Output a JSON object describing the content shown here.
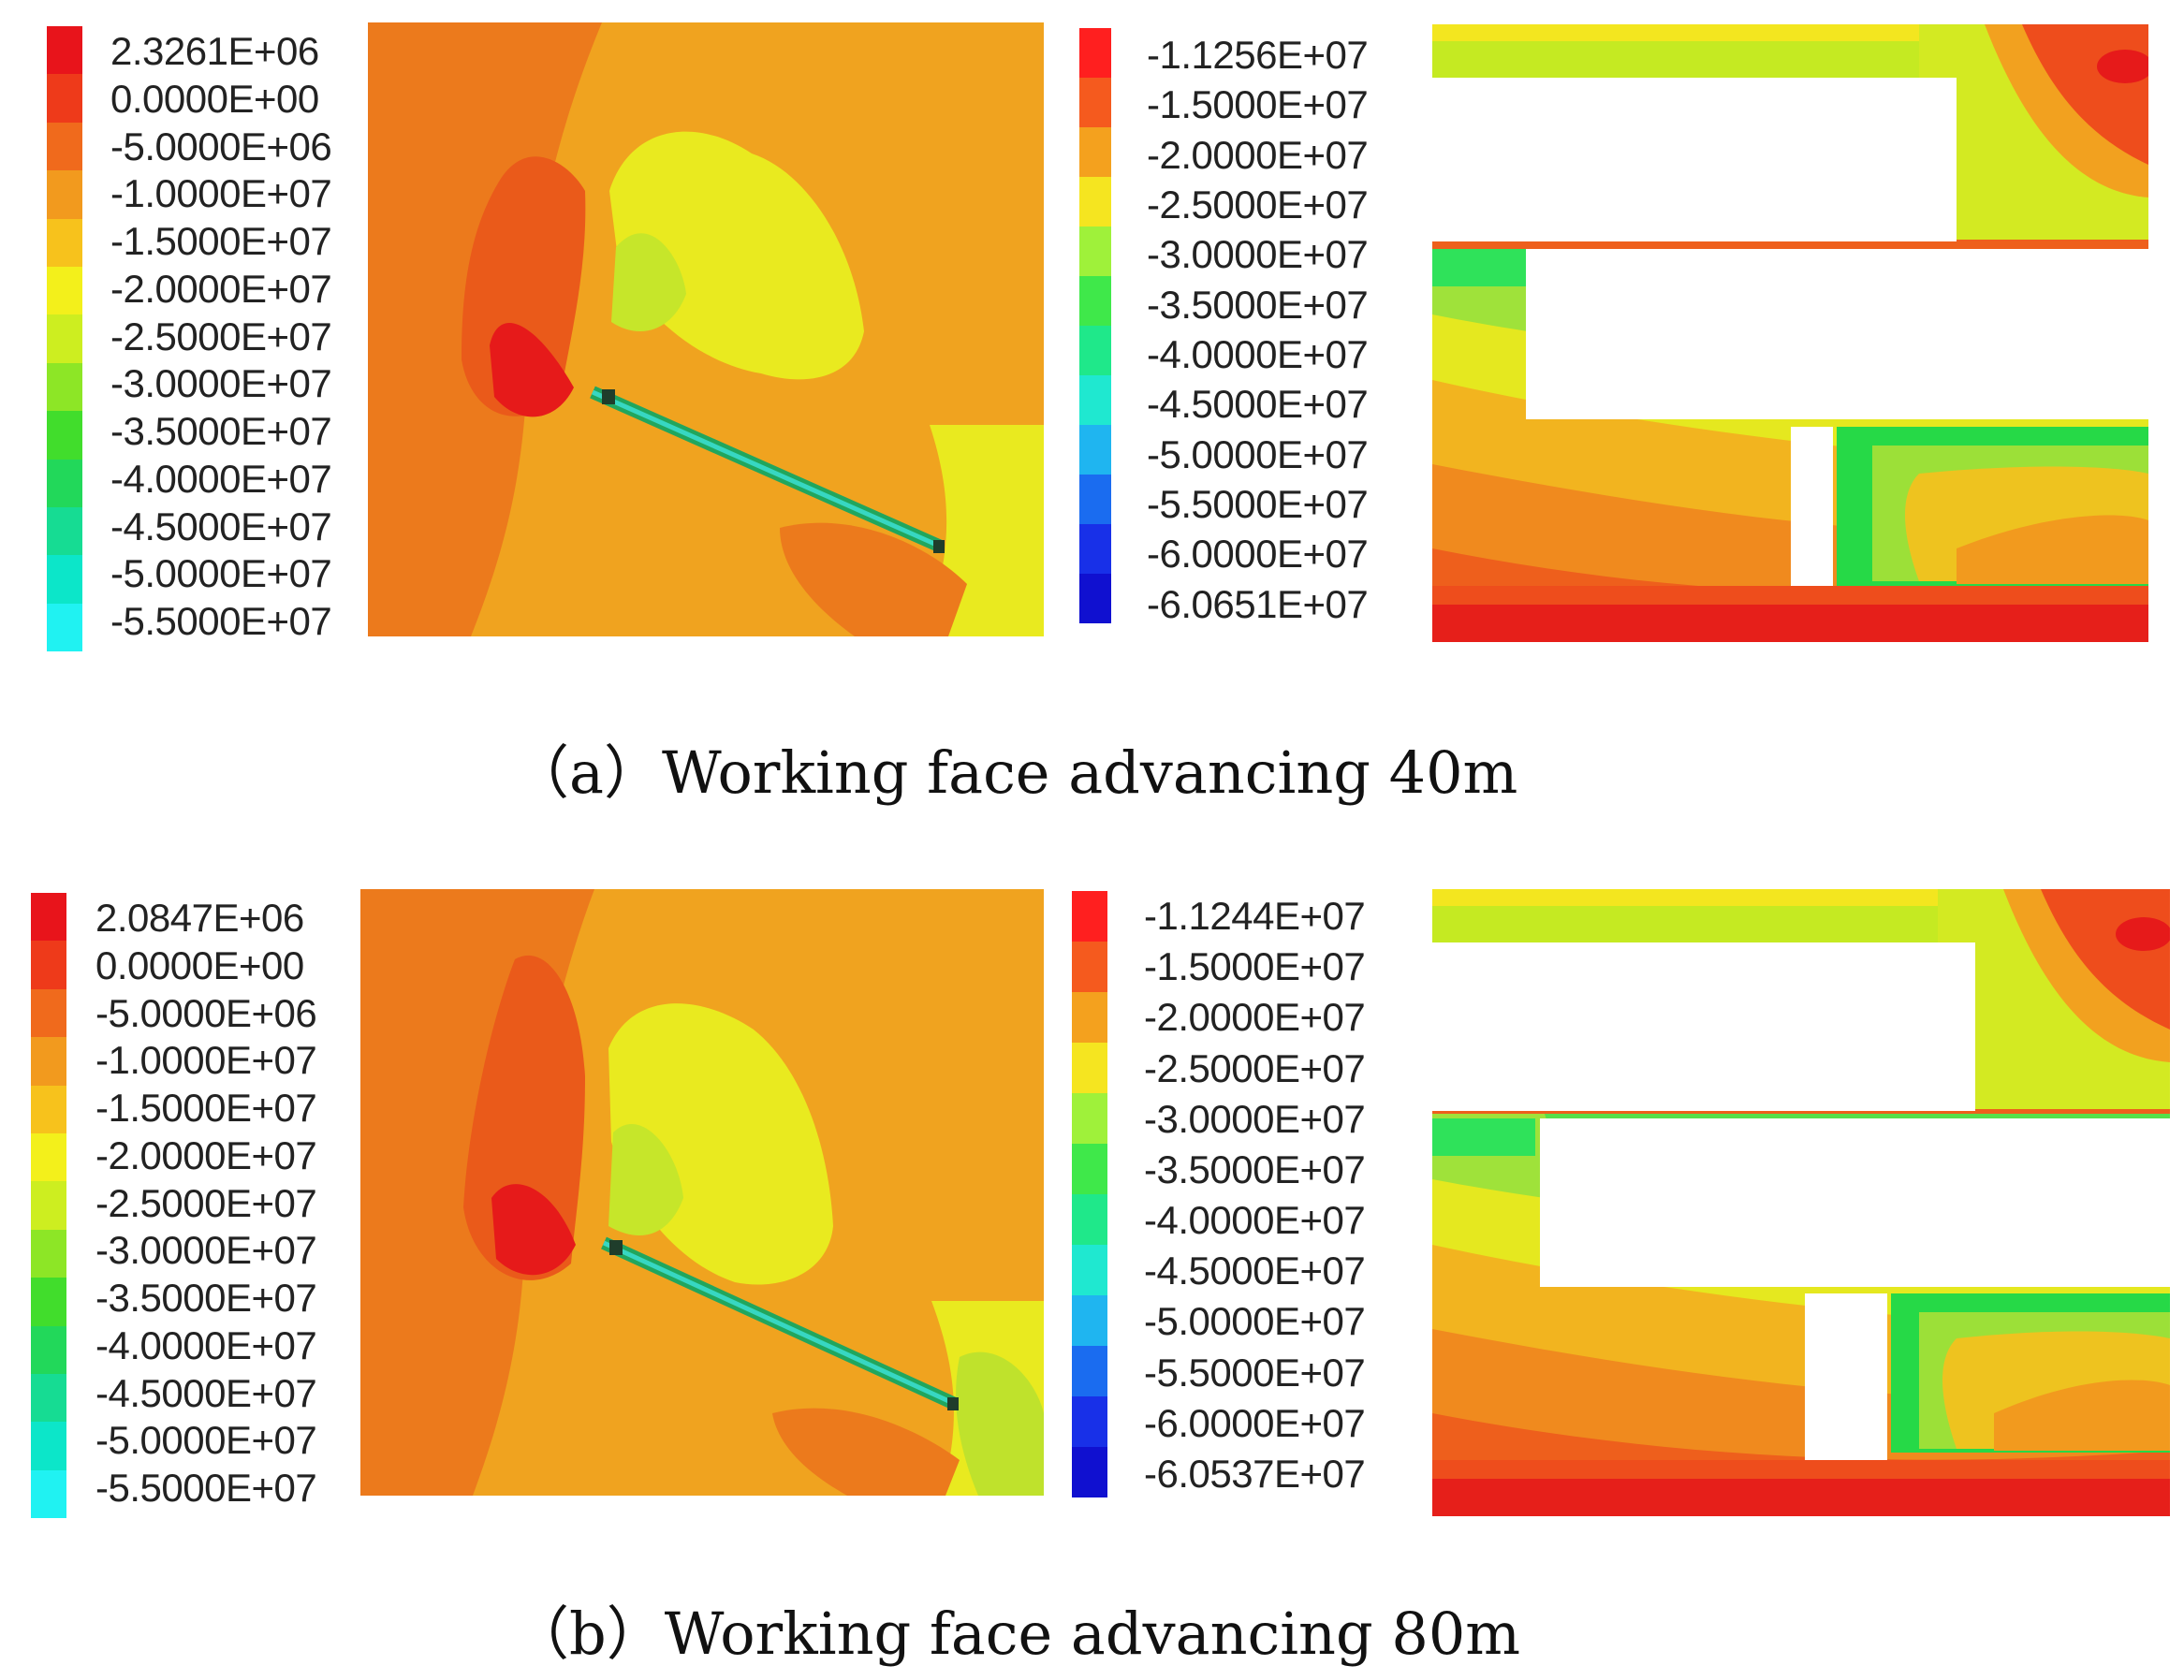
{
  "panels": [
    {
      "caption": "（a）Working face advancing 40m",
      "left_legend": [
        "2.3261E+06",
        "0.0000E+00",
        "-5.0000E+06",
        "-1.0000E+07",
        "-1.5000E+07",
        "-2.0000E+07",
        "-2.5000E+07",
        "-3.0000E+07",
        "-3.5000E+07",
        "-4.0000E+07",
        "-4.5000E+07",
        "-5.0000E+07",
        "-5.5000E+07"
      ],
      "right_legend": [
        "-1.1256E+07",
        "-1.5000E+07",
        "-2.0000E+07",
        "-2.5000E+07",
        "-3.0000E+07",
        "-3.5000E+07",
        "-4.0000E+07",
        "-4.5000E+07",
        "-5.0000E+07",
        "-5.5000E+07",
        "-6.0000E+07",
        "-6.0651E+07"
      ]
    },
    {
      "caption": "（b）Working face advancing 80m",
      "left_legend": [
        "2.0847E+06",
        "0.0000E+00",
        "-5.0000E+06",
        "-1.0000E+07",
        "-1.5000E+07",
        "-2.0000E+07",
        "-2.5000E+07",
        "-3.0000E+07",
        "-3.5000E+07",
        "-4.0000E+07",
        "-4.5000E+07",
        "-5.0000E+07",
        "-5.5000E+07"
      ],
      "right_legend": [
        "-1.1244E+07",
        "-1.5000E+07",
        "-2.0000E+07",
        "-2.5000E+07",
        "-3.0000E+07",
        "-3.5000E+07",
        "-4.0000E+07",
        "-4.5000E+07",
        "-5.0000E+07",
        "-5.5000E+07",
        "-6.0000E+07",
        "-6.0537E+07"
      ]
    }
  ],
  "colors": {
    "left_scale": [
      "#e8141b",
      "#ee3a1a",
      "#f06a1c",
      "#f29a1e",
      "#f7c21c",
      "#f3f01b",
      "#cdee20",
      "#8de626",
      "#41dd2c",
      "#22d85a",
      "#16dc93",
      "#0ce6c9",
      "#20f2f2"
    ],
    "right_scale": [
      "#ff1f1f",
      "#f55a1e",
      "#f4a11e",
      "#f5e520",
      "#9ff13a",
      "#3fe84a",
      "#1fe88a",
      "#1fe8d0",
      "#1fb5f0",
      "#1a6cf0",
      "#1830e8",
      "#1010d0"
    ]
  }
}
